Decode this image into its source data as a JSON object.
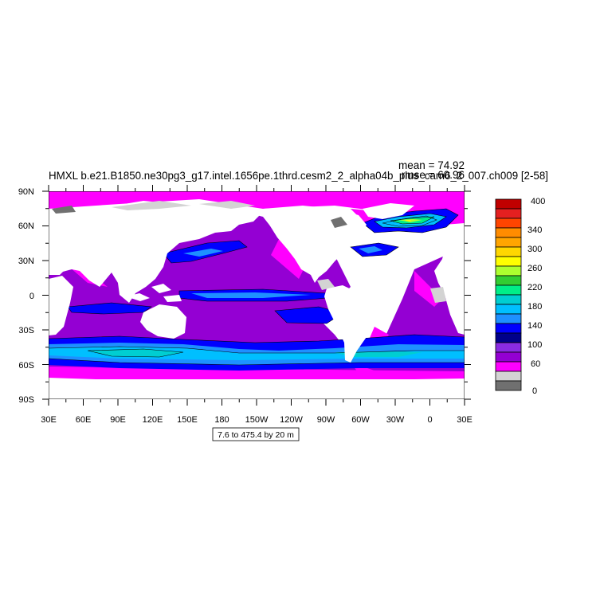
{
  "title": "HMXL b.e21.B1850.ne30pg3_g17.intel.1656pe.1thrd.cesm2_2_alpha04b_plus_cam6_2_007.ch009 [2-58]",
  "stats": {
    "mean": "mean = 74.92",
    "rmse": "rmse = 60.96"
  },
  "axes": {
    "lat_labels": [
      "90N",
      "60N",
      "30N",
      "0",
      "30S",
      "60S",
      "90S"
    ],
    "lon_labels": [
      "30E",
      "60E",
      "90E",
      "120E",
      "150E",
      "180",
      "150W",
      "120W",
      "90W",
      "60W",
      "30W",
      "0",
      "30E"
    ]
  },
  "contour_info": "7.6 to 475.4 by 20 m",
  "colorbar": {
    "labels": [
      "400",
      "340",
      "300",
      "260",
      "220",
      "180",
      "140",
      "100",
      "60",
      "0"
    ],
    "colors": [
      "#C00000",
      "#E42020",
      "#FF4500",
      "#FF8C00",
      "#FFA500",
      "#FFD700",
      "#FFFF00",
      "#ADFF2F",
      "#32CD32",
      "#00EE88",
      "#00CED1",
      "#00BFFF",
      "#1E90FF",
      "#0000FF",
      "#00008B",
      "#8A2BE2",
      "#9400D3",
      "#FF00FF",
      "#D3D3D3",
      "#707070"
    ]
  },
  "chart_data": {
    "type": "heatmap",
    "title": "HMXL b.e21.B1850.ne30pg3_g17.intel.1656pe.1thrd.cesm2_2_alpha04b_plus_cam6_2_007.ch009 [2-58]",
    "variable": "HMXL",
    "units": "m",
    "mean": 74.92,
    "rmse": 60.96,
    "contour_min": 7.6,
    "contour_max": 475.4,
    "contour_interval": 20,
    "xlim": [
      30,
      390
    ],
    "ylim": [
      -90,
      90
    ],
    "colorbar_ticks": [
      0,
      60,
      100,
      140,
      180,
      220,
      260,
      300,
      340,
      400
    ]
  }
}
